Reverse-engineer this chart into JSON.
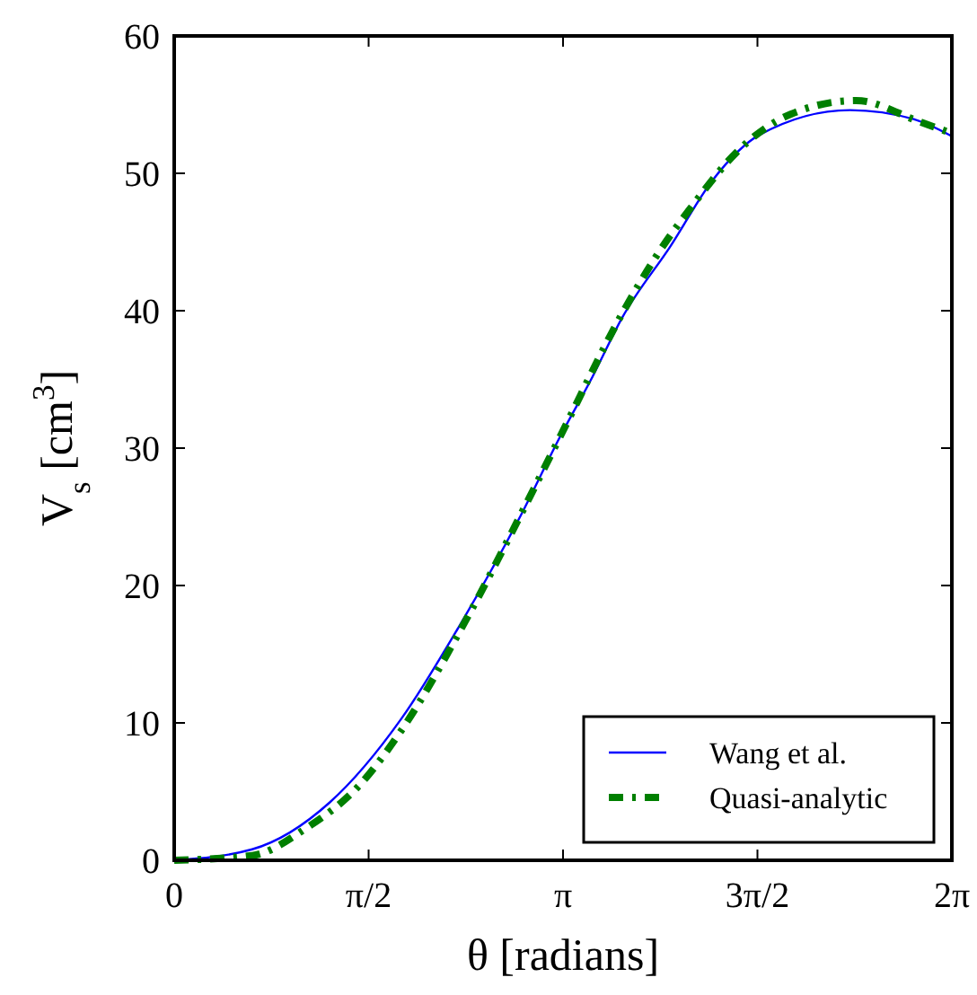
{
  "chart_data": {
    "type": "line",
    "xlabel": "θ [radians]",
    "ylabel": "V$_{s}$  [cm$^{3}$]",
    "xlim": [
      0,
      6.2832
    ],
    "ylim": [
      0,
      60
    ],
    "xticks": [
      {
        "value": 0,
        "label": "0"
      },
      {
        "value": 1.5708,
        "label": "π/2"
      },
      {
        "value": 3.1416,
        "label": "π"
      },
      {
        "value": 4.7124,
        "label": "3π/2"
      },
      {
        "value": 6.2832,
        "label": "2π"
      }
    ],
    "yticks": [
      0,
      10,
      20,
      30,
      40,
      50,
      60
    ],
    "grid": false,
    "legend": "bottom right",
    "series": [
      {
        "name": "Wang et al.",
        "color": "#0000ff",
        "line_style": "solid",
        "x": [
          0,
          0.63,
          1.255,
          1.835,
          2.32,
          2.8,
          3.116,
          3.38,
          3.62,
          4.01,
          4.35,
          4.73,
          5.46,
          5.99,
          6.2832
        ],
        "values": [
          0,
          0.8,
          4.2,
          10.3,
          17.3,
          25.1,
          30.8,
          35.2,
          39.5,
          44.7,
          49.5,
          52.8,
          54.6,
          53.9,
          52.7
        ]
      },
      {
        "name": "Quasi-analytic",
        "color": "#007f00",
        "line_style": "dashdot",
        "x": [
          0,
          0.63,
          1.06,
          1.5,
          1.835,
          2.37,
          2.87,
          3.116,
          3.62,
          3.89,
          4.2,
          4.54,
          4.98,
          5.51,
          6.01,
          6.2832
        ],
        "values": [
          0,
          0.35,
          2.3,
          5.5,
          9.45,
          17.7,
          26.4,
          30.8,
          39.8,
          43.9,
          47.8,
          51.5,
          54.3,
          55.3,
          53.8,
          52.9
        ]
      }
    ]
  }
}
